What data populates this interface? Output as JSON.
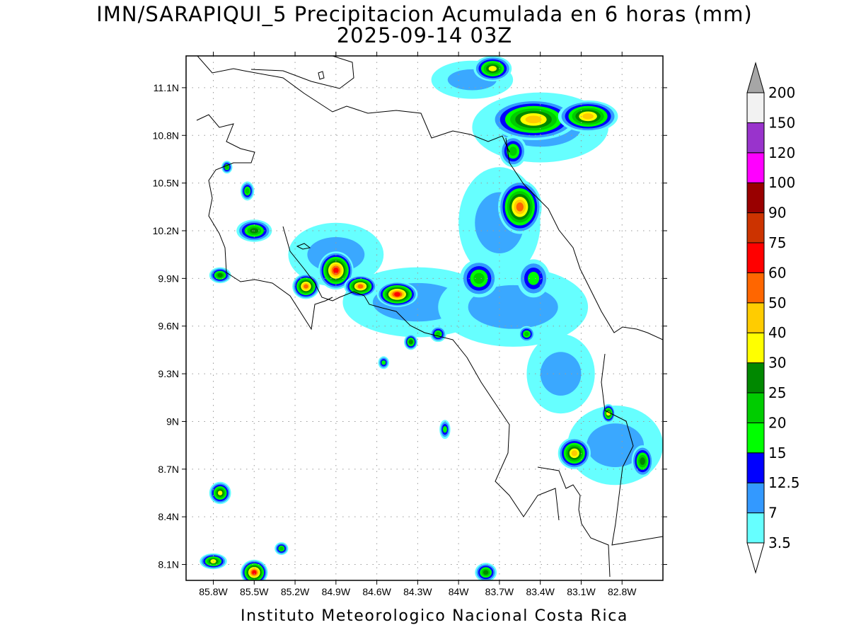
{
  "title_line1": "IMN/SARAPIQUI_5 Precipitacion Acumulada en 6 horas (mm)",
  "title_line2": "2025-09-14 03Z",
  "credit": "Instituto Meteorologico Nacional Costa Rica",
  "map": {
    "lon_range": [
      -86.0,
      -82.5
    ],
    "lat_range": [
      8.0,
      11.3
    ],
    "lon_ticks": [
      "85.8W",
      "85.5W",
      "85.2W",
      "84.9W",
      "84.6W",
      "84.3W",
      "84W",
      "83.7W",
      "83.4W",
      "83.1W",
      "82.8W"
    ],
    "lon_tick_values": [
      -85.8,
      -85.5,
      -85.2,
      -84.9,
      -84.6,
      -84.3,
      -84.0,
      -83.7,
      -83.4,
      -83.1,
      -82.8
    ],
    "lat_ticks": [
      "11.1N",
      "10.8N",
      "10.5N",
      "10.2N",
      "9.9N",
      "9.6N",
      "9.3N",
      "9N",
      "8.7N",
      "8.4N",
      "8.1N"
    ],
    "lat_tick_values": [
      11.1,
      10.8,
      10.5,
      10.2,
      9.9,
      9.6,
      9.3,
      9.0,
      8.7,
      8.4,
      8.1
    ],
    "grid": "dotted"
  },
  "colorbar": {
    "labels": [
      "3.5",
      "7",
      "12.5",
      "15",
      "20",
      "25",
      "30",
      "40",
      "50",
      "60",
      "75",
      "90",
      "100",
      "120",
      "150",
      "200"
    ],
    "colors": [
      "#ffffff",
      "#66ffff",
      "#3399ff",
      "#0000ff",
      "#00ff00",
      "#00cc00",
      "#008800",
      "#ffff00",
      "#ffcc00",
      "#ff6600",
      "#ff0000",
      "#cc3300",
      "#990000",
      "#ff00ff",
      "#9933cc",
      "#f2f2f2",
      "#a6a6a6"
    ],
    "extend": "both"
  },
  "precip_cells": [
    {
      "lon": -83.45,
      "lat": 10.9,
      "rx": 0.32,
      "ry": 0.13,
      "peak": 40
    },
    {
      "lon": -83.05,
      "lat": 10.92,
      "rx": 0.22,
      "ry": 0.1,
      "peak": 45
    },
    {
      "lon": -83.75,
      "lat": 11.22,
      "rx": 0.14,
      "ry": 0.08,
      "peak": 30
    },
    {
      "lon": -83.55,
      "lat": 10.35,
      "rx": 0.16,
      "ry": 0.17,
      "peak": 55
    },
    {
      "lon": -83.6,
      "lat": 10.7,
      "rx": 0.1,
      "ry": 0.1,
      "peak": 20
    },
    {
      "lon": -84.9,
      "lat": 9.95,
      "rx": 0.13,
      "ry": 0.12,
      "peak": 60
    },
    {
      "lon": -85.12,
      "lat": 9.85,
      "rx": 0.1,
      "ry": 0.08,
      "peak": 55
    },
    {
      "lon": -84.72,
      "lat": 9.85,
      "rx": 0.12,
      "ry": 0.07,
      "peak": 50
    },
    {
      "lon": -84.45,
      "lat": 9.8,
      "rx": 0.15,
      "ry": 0.08,
      "peak": 60
    },
    {
      "lon": -85.5,
      "lat": 10.2,
      "rx": 0.13,
      "ry": 0.07,
      "peak": 25
    },
    {
      "lon": -85.7,
      "lat": 10.6,
      "rx": 0.04,
      "ry": 0.04,
      "peak": 20
    },
    {
      "lon": -85.55,
      "lat": 10.45,
      "rx": 0.05,
      "ry": 0.06,
      "peak": 20
    },
    {
      "lon": -85.75,
      "lat": 9.92,
      "rx": 0.08,
      "ry": 0.05,
      "peak": 25
    },
    {
      "lon": -83.85,
      "lat": 9.9,
      "rx": 0.14,
      "ry": 0.12,
      "peak": 20
    },
    {
      "lon": -83.45,
      "lat": 9.9,
      "rx": 0.12,
      "ry": 0.12,
      "peak": 15
    },
    {
      "lon": -83.15,
      "lat": 8.8,
      "rx": 0.12,
      "ry": 0.1,
      "peak": 40
    },
    {
      "lon": -82.9,
      "lat": 9.05,
      "rx": 0.05,
      "ry": 0.06,
      "peak": 30
    },
    {
      "lon": -82.65,
      "lat": 8.75,
      "rx": 0.08,
      "ry": 0.1,
      "peak": 25
    },
    {
      "lon": -85.75,
      "lat": 8.55,
      "rx": 0.08,
      "ry": 0.07,
      "peak": 30
    },
    {
      "lon": -85.5,
      "lat": 8.05,
      "rx": 0.1,
      "ry": 0.08,
      "peak": 60
    },
    {
      "lon": -85.8,
      "lat": 8.12,
      "rx": 0.1,
      "ry": 0.05,
      "peak": 30
    },
    {
      "lon": -85.3,
      "lat": 8.2,
      "rx": 0.05,
      "ry": 0.04,
      "peak": 20
    },
    {
      "lon": -83.8,
      "lat": 8.05,
      "rx": 0.08,
      "ry": 0.06,
      "peak": 25
    },
    {
      "lon": -84.15,
      "lat": 9.55,
      "rx": 0.06,
      "ry": 0.05,
      "peak": 20
    },
    {
      "lon": -84.35,
      "lat": 9.5,
      "rx": 0.05,
      "ry": 0.05,
      "peak": 25
    },
    {
      "lon": -83.5,
      "lat": 9.55,
      "rx": 0.06,
      "ry": 0.05,
      "peak": 20
    },
    {
      "lon": -84.1,
      "lat": 8.95,
      "rx": 0.04,
      "ry": 0.06,
      "peak": 15
    },
    {
      "lon": -84.55,
      "lat": 9.37,
      "rx": 0.04,
      "ry": 0.04,
      "peak": 15
    }
  ],
  "light_rain_areas": [
    {
      "lon": -84.3,
      "lat": 9.75,
      "rx": 0.55,
      "ry": 0.22
    },
    {
      "lon": -83.6,
      "lat": 9.72,
      "rx": 0.55,
      "ry": 0.25
    },
    {
      "lon": -83.4,
      "lat": 10.85,
      "rx": 0.5,
      "ry": 0.22
    },
    {
      "lon": -83.7,
      "lat": 10.25,
      "rx": 0.3,
      "ry": 0.35
    },
    {
      "lon": -83.25,
      "lat": 9.3,
      "rx": 0.25,
      "ry": 0.25
    },
    {
      "lon": -82.85,
      "lat": 8.85,
      "rx": 0.35,
      "ry": 0.25
    },
    {
      "lon": -84.9,
      "lat": 10.05,
      "rx": 0.35,
      "ry": 0.2
    },
    {
      "lon": -83.9,
      "lat": 11.15,
      "rx": 0.3,
      "ry": 0.12
    }
  ]
}
